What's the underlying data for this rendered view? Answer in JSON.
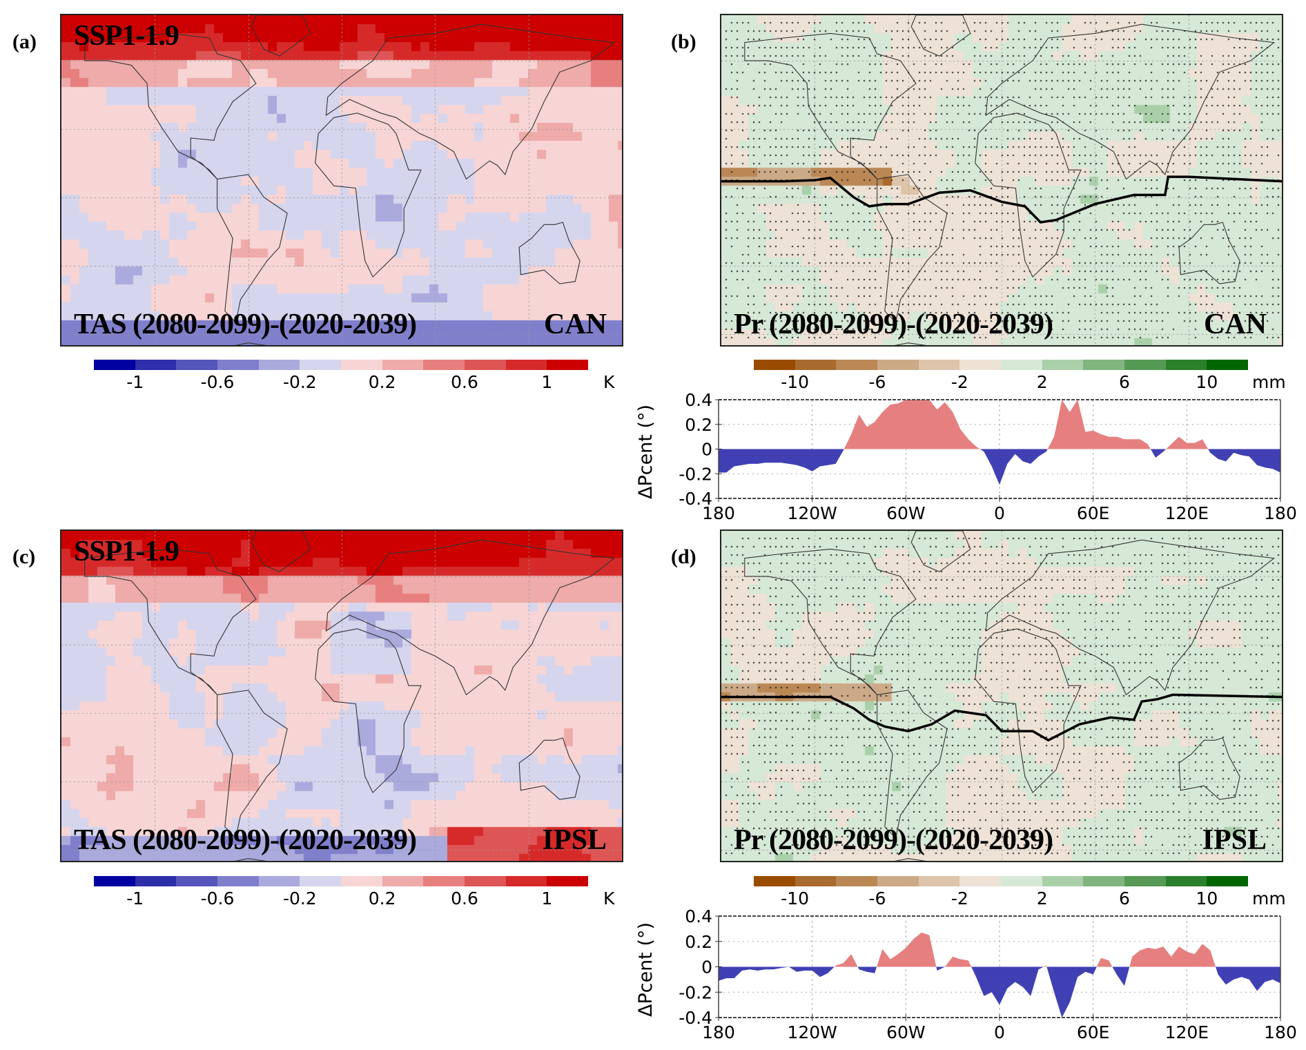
{
  "figure": {
    "panels": [
      {
        "letter": "(a)",
        "scenario": "SSP1-1.9",
        "title": "TAS (2080-2099)-(2020-2039)",
        "model": "CAN",
        "variable": "TAS",
        "type": "tas_map"
      },
      {
        "letter": "(b)",
        "scenario": "",
        "title": "Pr (2080-2099)-(2020-2039)",
        "model": "CAN",
        "variable": "Pr",
        "type": "pr_map"
      },
      {
        "letter": "(c)",
        "scenario": "SSP1-1.9",
        "title": "TAS (2080-2099)-(2020-2039)",
        "model": "IPSL",
        "variable": "TAS",
        "type": "tas_map"
      },
      {
        "letter": "(d)",
        "scenario": "",
        "title": "Pr (2080-2099)-(2020-2039)",
        "model": "IPSL",
        "variable": "Pr",
        "type": "pr_map"
      }
    ],
    "tas_colorbar": {
      "unit": "K",
      "colors": [
        "#0000a0",
        "#2e2eaa",
        "#5555bb",
        "#7f7fcc",
        "#aaaadd",
        "#d5d5ee",
        "#f7d5d5",
        "#efaaaa",
        "#e77f7f",
        "#de5555",
        "#d62a2a",
        "#cc0000"
      ],
      "tick_labels": [
        "-1",
        "-0.6",
        "-0.2",
        "0.2",
        "0.6",
        "1"
      ],
      "tick_values": [
        -1,
        -0.6,
        -0.2,
        0.2,
        0.6,
        1
      ],
      "range": [
        -1.2,
        1.2
      ]
    },
    "pr_colorbar": {
      "unit": "mm",
      "colors": [
        "#994c00",
        "#a86a2d",
        "#bb8855",
        "#ccaa88",
        "#ddc4aa",
        "#eee2d6",
        "#d6e8d6",
        "#aad0aa",
        "#80b580",
        "#559955",
        "#2b802b",
        "#006600"
      ],
      "tick_labels": [
        "-10",
        "-6",
        "-2",
        "2",
        "6",
        "10"
      ],
      "tick_values": [
        -10,
        -6,
        -2,
        2,
        6,
        10
      ],
      "range": [
        -12,
        12
      ]
    }
  },
  "chart_data": [
    {
      "type": "area",
      "panel": "(b)",
      "model": "CAN",
      "title": "",
      "xlabel": "",
      "ylabel": "ΔPcent (°)",
      "ylim": [
        -0.4,
        0.4
      ],
      "xlim": [
        -180,
        180
      ],
      "grid": true,
      "x_ticks": [
        -180,
        -120,
        -60,
        0,
        60,
        120,
        180
      ],
      "x_tick_labels": [
        "180",
        "120W",
        "60W",
        "0",
        "60E",
        "120E",
        "180"
      ],
      "y_ticks": [
        -0.4,
        -0.2,
        0,
        0.2,
        0.4
      ],
      "y_tick_labels": [
        "-0.4",
        "-0.2",
        "0",
        "0.2",
        "0.4"
      ],
      "positive_color": "#e68080",
      "negative_color": "#4040b4",
      "x": [
        -180,
        -175,
        -170,
        -165,
        -160,
        -155,
        -150,
        -145,
        -140,
        -135,
        -130,
        -125,
        -120,
        -115,
        -110,
        -105,
        -100,
        -95,
        -90,
        -85,
        -80,
        -75,
        -70,
        -65,
        -60,
        -55,
        -50,
        -45,
        -40,
        -35,
        -30,
        -25,
        -20,
        -15,
        -10,
        -5,
        0,
        5,
        10,
        15,
        20,
        25,
        30,
        35,
        40,
        45,
        50,
        55,
        60,
        65,
        70,
        75,
        80,
        85,
        90,
        95,
        100,
        105,
        110,
        115,
        120,
        125,
        130,
        135,
        140,
        145,
        150,
        155,
        160,
        165,
        170,
        175,
        180
      ],
      "values": [
        -0.19,
        -0.19,
        -0.14,
        -0.13,
        -0.12,
        -0.12,
        -0.11,
        -0.11,
        -0.11,
        -0.12,
        -0.13,
        -0.15,
        -0.18,
        -0.14,
        -0.13,
        -0.12,
        -0.01,
        0.12,
        0.28,
        0.18,
        0.22,
        0.3,
        0.36,
        0.37,
        0.4,
        0.4,
        0.4,
        0.4,
        0.32,
        0.38,
        0.3,
        0.16,
        0.08,
        0.02,
        -0.02,
        -0.14,
        -0.29,
        -0.12,
        -0.04,
        -0.1,
        -0.12,
        -0.06,
        -0.02,
        0.1,
        0.4,
        0.3,
        0.4,
        0.14,
        0.15,
        0.12,
        0.1,
        0.1,
        0.08,
        0.08,
        0.08,
        0.04,
        -0.07,
        -0.02,
        0.04,
        0.1,
        0.05,
        0.05,
        0.08,
        -0.03,
        -0.08,
        -0.1,
        -0.03,
        -0.05,
        -0.06,
        -0.13,
        -0.15,
        -0.16,
        -0.19
      ]
    },
    {
      "type": "area",
      "panel": "(d)",
      "model": "IPSL",
      "title": "",
      "xlabel": "",
      "ylabel": "ΔPcent (°)",
      "ylim": [
        -0.4,
        0.4
      ],
      "xlim": [
        -180,
        180
      ],
      "grid": true,
      "x_ticks": [
        -180,
        -120,
        -60,
        0,
        60,
        120,
        180
      ],
      "x_tick_labels": [
        "180",
        "120W",
        "60W",
        "0",
        "60E",
        "120E",
        "180"
      ],
      "y_ticks": [
        -0.4,
        -0.2,
        0,
        0.2,
        0.4
      ],
      "y_tick_labels": [
        "-0.4",
        "-0.2",
        "0",
        "0.2",
        "0.4"
      ],
      "positive_color": "#e68080",
      "negative_color": "#4040b4",
      "x": [
        -180,
        -175,
        -170,
        -165,
        -160,
        -155,
        -150,
        -145,
        -140,
        -135,
        -130,
        -125,
        -120,
        -115,
        -110,
        -105,
        -100,
        -95,
        -90,
        -85,
        -80,
        -75,
        -70,
        -65,
        -60,
        -55,
        -50,
        -45,
        -40,
        -35,
        -30,
        -25,
        -20,
        -15,
        -10,
        -5,
        0,
        5,
        10,
        15,
        20,
        25,
        30,
        35,
        40,
        45,
        50,
        55,
        60,
        65,
        70,
        75,
        80,
        85,
        90,
        95,
        100,
        105,
        110,
        115,
        120,
        125,
        130,
        135,
        140,
        145,
        150,
        155,
        160,
        165,
        170,
        175,
        180
      ],
      "values": [
        -0.11,
        -0.09,
        -0.09,
        -0.03,
        -0.02,
        -0.03,
        -0.02,
        -0.02,
        -0.01,
        0.0,
        -0.04,
        -0.03,
        -0.03,
        -0.08,
        -0.05,
        0.01,
        0.03,
        0.1,
        -0.02,
        -0.04,
        -0.05,
        0.14,
        0.06,
        0.1,
        0.15,
        0.22,
        0.27,
        0.25,
        -0.03,
        0.0,
        0.08,
        0.06,
        0.05,
        -0.08,
        -0.23,
        -0.2,
        -0.3,
        -0.17,
        -0.12,
        -0.16,
        -0.23,
        -0.02,
        0.01,
        -0.2,
        -0.4,
        -0.28,
        -0.08,
        -0.04,
        -0.06,
        0.07,
        0.05,
        -0.06,
        -0.15,
        0.08,
        0.13,
        0.15,
        0.14,
        0.16,
        0.08,
        0.16,
        0.12,
        0.1,
        0.18,
        0.13,
        -0.06,
        -0.14,
        -0.1,
        -0.08,
        -0.1,
        -0.19,
        -0.12,
        -0.1,
        -0.13
      ]
    }
  ]
}
